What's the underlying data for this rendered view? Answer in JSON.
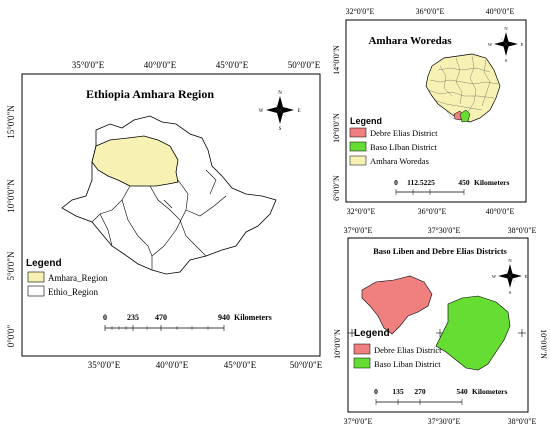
{
  "main_map": {
    "title": "Ethiopia Amhara Region",
    "top_lon_labels": [
      "35°0'0\"E",
      "40°0'0\"E",
      "45°0'0\"E",
      "50°0'0\"E"
    ],
    "bottom_lon_labels": [
      "35°0'0\"E",
      "40°0'0\"E",
      "45°0'0\"E",
      "50°0'0\"E"
    ],
    "lat_labels": [
      "15°0'0\"N",
      "10°0'0\"N",
      "5°0'0\"N",
      "0°0'0\""
    ],
    "legend": {
      "title": "Legend",
      "items": [
        {
          "label": "Amhara_Region",
          "color": "#f7f2b4"
        },
        {
          "label": "Ethio_Region",
          "color": "#ffffff"
        }
      ]
    },
    "scale": {
      "labels": [
        "0",
        "235",
        "470",
        "940"
      ],
      "unit": "Kilometers"
    }
  },
  "top_right_map": {
    "title": "Amhara Woredas",
    "top_lon_labels": [
      "32°0'0\"E",
      "36°0'0\"E",
      "40°0'0\"E"
    ],
    "bottom_lon_labels": [
      "32°0'0\"E",
      "36°0'0\"E",
      "40°0'0\"E"
    ],
    "lat_labels": [
      "14°0'0\"N",
      "10°0'0\"N",
      "6°0'0\"N"
    ],
    "legend": {
      "title": "Legend",
      "items": [
        {
          "label": "Debre Elias District",
          "color": "#f08080"
        },
        {
          "label": "Baso LIban District",
          "color": "#66dd33"
        },
        {
          "label": "Amhara Woredas",
          "color": "#f7f2b4"
        }
      ]
    },
    "scale": {
      "labels": [
        "0",
        "112.5225",
        "450"
      ],
      "unit": "Kilometers"
    }
  },
  "bottom_right_map": {
    "title": "Baso Liben and Debre Elias Districts",
    "top_lon_labels": [
      "37°0'0\"E",
      "37°30'0\"E",
      "38°0'0\"E"
    ],
    "bottom_lon_labels": [
      "37°0'0\"E",
      "37°30'0\"E",
      "38°0'0\"E"
    ],
    "lat_labels": [
      "10°0'0\"N"
    ],
    "legend": {
      "title": "Legend",
      "items": [
        {
          "label": "Debre Elias District",
          "color": "#f08080"
        },
        {
          "label": "Baso Liban District",
          "color": "#66dd33"
        }
      ]
    },
    "scale": {
      "labels": [
        "0",
        "135",
        "270",
        "540"
      ],
      "unit": "Kilometers"
    }
  },
  "compass": {
    "n": "N",
    "s": "S",
    "e": "E",
    "w": "W"
  }
}
